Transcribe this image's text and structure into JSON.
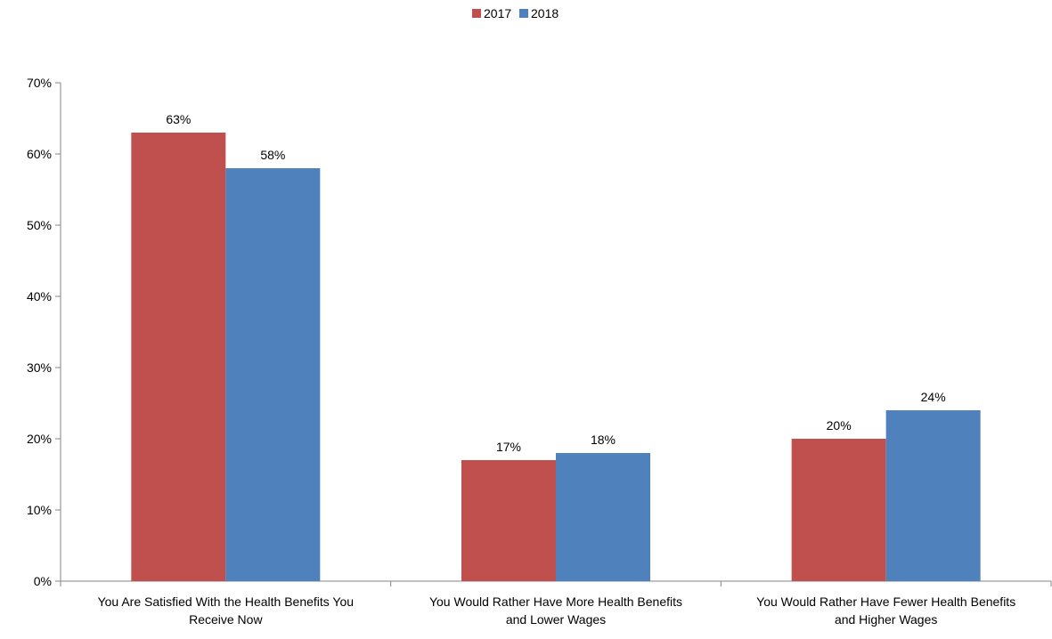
{
  "chart_data": {
    "type": "bar",
    "categories": [
      [
        "You Are Satisfied With the Health Benefits You",
        "Receive Now"
      ],
      [
        "You Would Rather Have More Health Benefits",
        "and Lower Wages"
      ],
      [
        "You Would Rather Have Fewer Health Benefits",
        "and Higher Wages"
      ]
    ],
    "series": [
      {
        "name": "2017",
        "color": "#c0504d",
        "values": [
          63,
          17,
          20
        ]
      },
      {
        "name": "2018",
        "color": "#4f81bd",
        "values": [
          58,
          18,
          24
        ]
      }
    ],
    "value_suffix": "%",
    "ylim": [
      0,
      70
    ],
    "yticks": [
      0,
      10,
      20,
      30,
      40,
      50,
      60,
      70
    ],
    "title": "",
    "xlabel": "",
    "ylabel": "",
    "grid": false,
    "legend_position": "top-center",
    "data_labels": true
  }
}
